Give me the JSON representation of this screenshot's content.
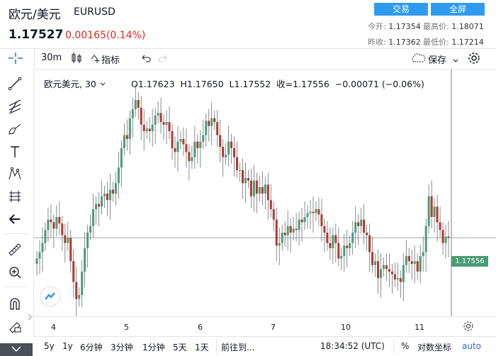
{
  "header": {
    "pair_name": "欧元/美元",
    "pair_code": "EURUSD",
    "price": "1.17527",
    "change": "0.00165(0.14%)",
    "trade_button": "交易",
    "fullscreen_button": "全屏",
    "open_label": "今开:",
    "open_value": "1.17354",
    "high_label": "最高价:",
    "high_value": "1.18071",
    "prev_close_label": "昨收:",
    "prev_close_value": "1.17362",
    "low_label": "最低价:",
    "low_value": "1.17214"
  },
  "toolbar": {
    "interval": "30m",
    "indicators": "指标",
    "save": "保存"
  },
  "legend": {
    "symbol": "欧元美元",
    "interval": "30",
    "open": "O1.17623",
    "high": "H1.17650",
    "low": "L1.17552",
    "close": "收=1.17556",
    "change": "−0.00071 (−0.06%)"
  },
  "chart_data": {
    "type": "candlestick",
    "x_ticks": [
      "4",
      "5",
      "6",
      "7",
      "10",
      "11"
    ],
    "last_price_tag": "1.17556",
    "close": [
      1.174,
      1.1745,
      1.1752,
      1.1762,
      1.177,
      1.1768,
      1.1763,
      1.1772,
      1.1767,
      1.1758,
      1.1752,
      1.1756,
      1.1738,
      1.1722,
      1.1709,
      1.1712,
      1.173,
      1.1748,
      1.176,
      1.1765,
      1.1778,
      1.1782,
      1.178,
      1.1788,
      1.179,
      1.1785,
      1.1793,
      1.179,
      1.1798,
      1.181,
      1.1825,
      1.1835,
      1.1832,
      1.1848,
      1.1855,
      1.1862,
      1.1856,
      1.1843,
      1.1838,
      1.184,
      1.1838,
      1.1843,
      1.185,
      1.1852,
      1.1845,
      1.1843,
      1.1845,
      1.1838,
      1.1825,
      1.1822,
      1.183,
      1.1832,
      1.1828,
      1.1822,
      1.1815,
      1.1818,
      1.183,
      1.1825,
      1.183,
      1.1835,
      1.1846,
      1.1842,
      1.1848,
      1.1845,
      1.1835,
      1.1826,
      1.1818,
      1.182,
      1.183,
      1.1825,
      1.1818,
      1.1808,
      1.1808,
      1.1798,
      1.1802,
      1.18,
      1.1788,
      1.18,
      1.179,
      1.1795,
      1.179,
      1.1797,
      1.1785,
      1.1778,
      1.177,
      1.175,
      1.1752,
      1.176,
      1.1758,
      1.1765,
      1.176,
      1.1763,
      1.1762,
      1.177,
      1.1768,
      1.1772,
      1.1775,
      1.1776,
      1.1775,
      1.1778,
      1.1774,
      1.1765,
      1.176,
      1.1752,
      1.1748,
      1.1758,
      1.1752,
      1.174,
      1.1742,
      1.175,
      1.1748,
      1.1752,
      1.176,
      1.1768,
      1.1765,
      1.177,
      1.176,
      1.1758,
      1.1745,
      1.1735,
      1.1738,
      1.1725,
      1.1732,
      1.1735,
      1.1732,
      1.173,
      1.1728,
      1.1724,
      1.1725,
      1.1722,
      1.1735,
      1.1742,
      1.1738,
      1.1736,
      1.1738,
      1.173,
      1.1742,
      1.1745,
      1.1765,
      1.1788,
      1.1772,
      1.178,
      1.1768,
      1.1762,
      1.1752,
      1.1757,
      1.1756
    ],
    "ylim": [
      1.17,
      1.188
    ]
  },
  "bottom": {
    "ranges": [
      "5y",
      "1y",
      "6分钟",
      "3分钟",
      "1分钟",
      "5天",
      "1天"
    ],
    "goto": "前往到...",
    "time": "18:34:52 (UTC)",
    "percent": "%",
    "log": "对数坐标",
    "auto": "auto"
  },
  "colors": {
    "up": "#4a9c78",
    "down": "#b03a2e",
    "accent": "#2f9bf0",
    "negative_text": "#e0251f"
  }
}
